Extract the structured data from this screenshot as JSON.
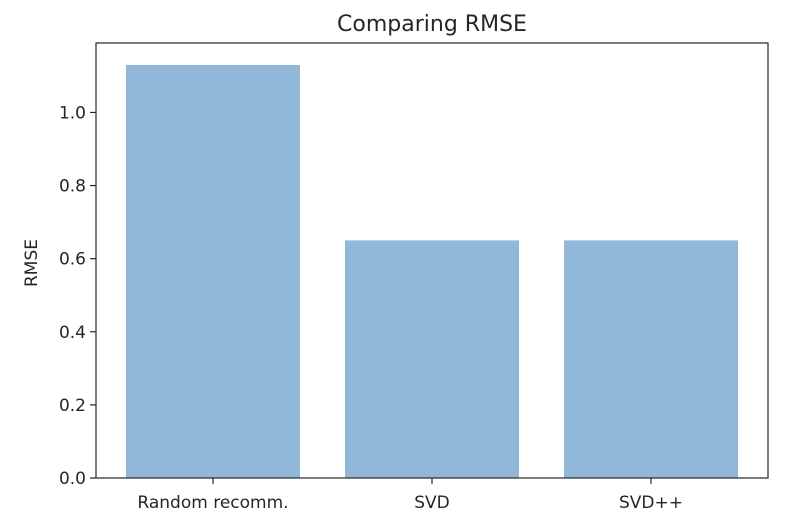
{
  "chart_data": {
    "type": "bar",
    "title": "Comparing RMSE",
    "xlabel": "",
    "ylabel": "RMSE",
    "categories": [
      "Random recomm.",
      "SVD",
      "SVD++"
    ],
    "values": [
      1.13,
      0.65,
      0.65
    ],
    "ylim": [
      0,
      1.19
    ],
    "yticks": [
      0.0,
      0.2,
      0.4,
      0.6,
      0.8,
      1.0
    ],
    "ytick_labels": [
      "0.0",
      "0.2",
      "0.4",
      "0.6",
      "0.8",
      "1.0"
    ],
    "bar_color": "#92b8d9",
    "grid": false,
    "legend": false
  }
}
